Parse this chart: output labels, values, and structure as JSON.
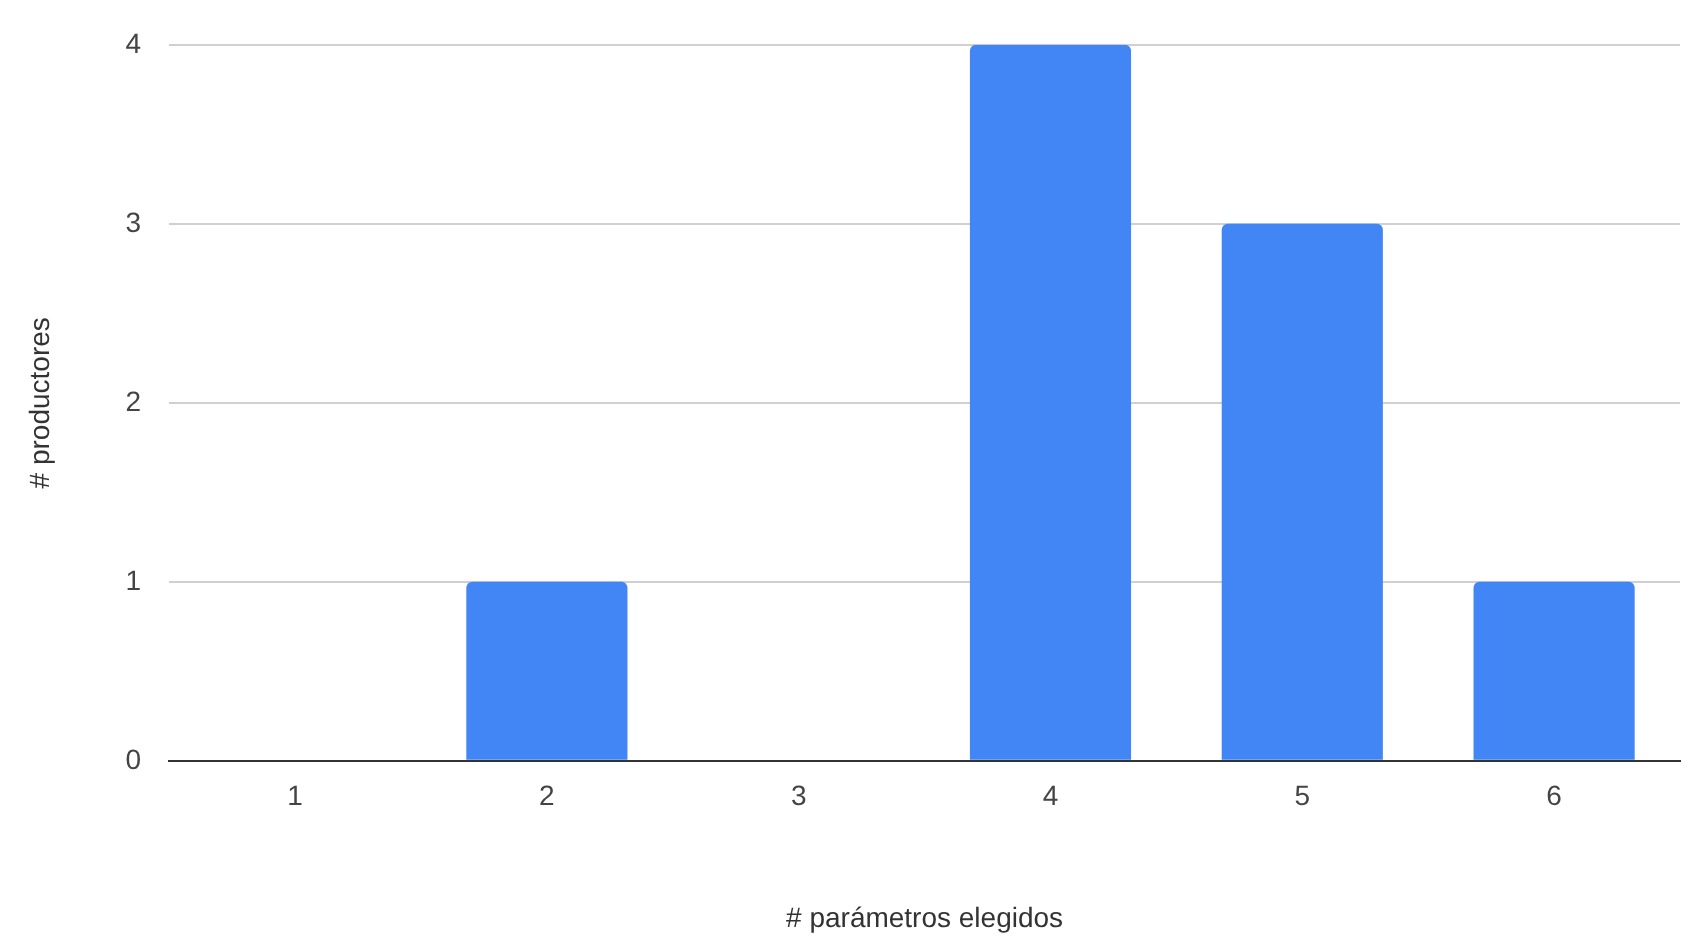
{
  "chart_data": {
    "type": "bar",
    "xlabel": "# parámetros elegidos",
    "ylabel": "# productores",
    "categories": [
      "1",
      "2",
      "3",
      "4",
      "5",
      "6"
    ],
    "values": [
      0,
      1,
      0,
      4,
      3,
      1
    ],
    "color": "#4285f4",
    "ylim": [
      0,
      4
    ],
    "yticks": [
      0,
      1,
      2,
      3,
      4
    ],
    "grid": "y",
    "legend": false
  }
}
